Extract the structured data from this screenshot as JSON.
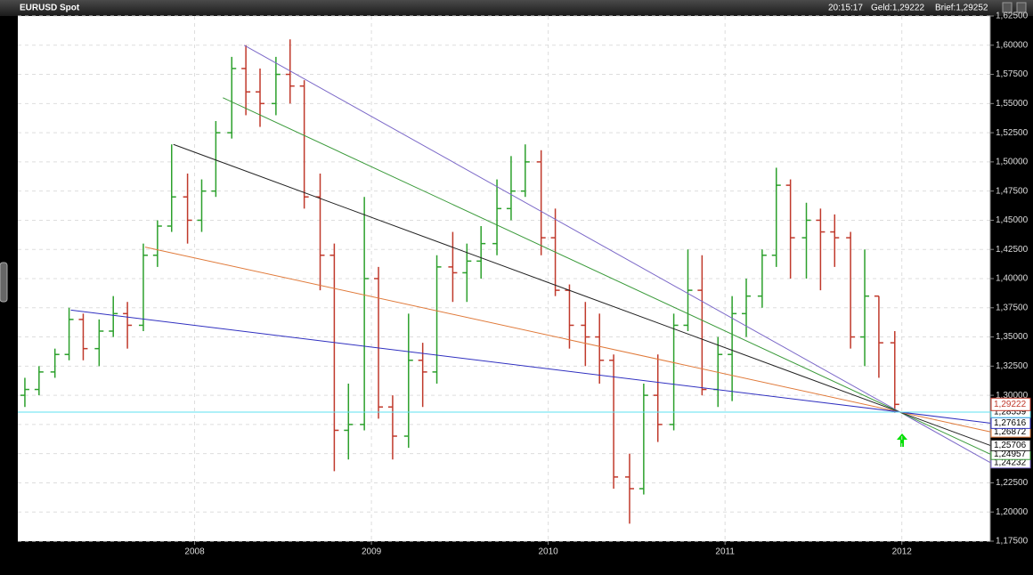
{
  "chart_data": {
    "type": "ohlc",
    "title": "EURUSD Spot",
    "time": "20:15:17",
    "bid": "Geld:1,29222",
    "ask": "Brief:1,29252",
    "up_color": "#2ca02c",
    "down_color": "#c0392b",
    "grid": true,
    "xlim": [
      2007.0,
      2012.5
    ],
    "xticks": [
      2008,
      2009,
      2010,
      2011,
      2012
    ],
    "ylim": [
      1.175,
      1.625
    ],
    "yticks": [
      {
        "value": 1.175,
        "label": "1,17500"
      },
      {
        "value": 1.2,
        "label": "1,20000"
      },
      {
        "value": 1.225,
        "label": "1,22500"
      },
      {
        "value": 1.25,
        "label": "1,25000"
      },
      {
        "value": 1.275,
        "label": "1,27500"
      },
      {
        "value": 1.3,
        "label": "1,30000"
      },
      {
        "value": 1.325,
        "label": "1,32500"
      },
      {
        "value": 1.35,
        "label": "1,35000"
      },
      {
        "value": 1.375,
        "label": "1,37500"
      },
      {
        "value": 1.4,
        "label": "1,40000"
      },
      {
        "value": 1.425,
        "label": "1,42500"
      },
      {
        "value": 1.45,
        "label": "1,45000"
      },
      {
        "value": 1.475,
        "label": "1,47500"
      },
      {
        "value": 1.5,
        "label": "1,50000"
      },
      {
        "value": 1.525,
        "label": "1,52500"
      },
      {
        "value": 1.55,
        "label": "1,55000"
      },
      {
        "value": 1.575,
        "label": "1,57500"
      },
      {
        "value": 1.6,
        "label": "1,60000"
      },
      {
        "value": 1.625,
        "label": "1,62500"
      }
    ],
    "x": [
      2007.04,
      2007.12,
      2007.21,
      2007.29,
      2007.37,
      2007.46,
      2007.54,
      2007.62,
      2007.71,
      2007.79,
      2007.87,
      2007.96,
      2008.04,
      2008.12,
      2008.21,
      2008.29,
      2008.37,
      2008.46,
      2008.54,
      2008.62,
      2008.71,
      2008.79,
      2008.87,
      2008.96,
      2009.04,
      2009.12,
      2009.21,
      2009.29,
      2009.37,
      2009.46,
      2009.54,
      2009.62,
      2009.71,
      2009.79,
      2009.87,
      2009.96,
      2010.04,
      2010.12,
      2010.21,
      2010.29,
      2010.37,
      2010.46,
      2010.54,
      2010.62,
      2010.71,
      2010.79,
      2010.87,
      2010.96,
      2011.04,
      2011.12,
      2011.21,
      2011.29,
      2011.37,
      2011.46,
      2011.54,
      2011.62,
      2011.71,
      2011.79,
      2011.87,
      2011.96
    ],
    "open": [
      1.3,
      1.305,
      1.32,
      1.335,
      1.365,
      1.34,
      1.355,
      1.37,
      1.36,
      1.42,
      1.445,
      1.47,
      1.45,
      1.475,
      1.525,
      1.58,
      1.56,
      1.55,
      1.575,
      1.565,
      1.47,
      1.42,
      1.27,
      1.275,
      1.4,
      1.29,
      1.265,
      1.33,
      1.32,
      1.41,
      1.405,
      1.415,
      1.43,
      1.46,
      1.475,
      1.5,
      1.435,
      1.39,
      1.36,
      1.35,
      1.33,
      1.23,
      1.22,
      1.3,
      1.275,
      1.36,
      1.39,
      1.305,
      1.335,
      1.37,
      1.385,
      1.42,
      1.48,
      1.435,
      1.45,
      1.44,
      1.435,
      1.35,
      1.385,
      1.345
    ],
    "high": [
      1.315,
      1.325,
      1.34,
      1.375,
      1.37,
      1.365,
      1.385,
      1.38,
      1.43,
      1.45,
      1.515,
      1.49,
      1.485,
      1.535,
      1.59,
      1.6,
      1.58,
      1.59,
      1.605,
      1.57,
      1.49,
      1.43,
      1.31,
      1.47,
      1.41,
      1.3,
      1.37,
      1.345,
      1.42,
      1.44,
      1.43,
      1.445,
      1.485,
      1.505,
      1.515,
      1.51,
      1.46,
      1.395,
      1.38,
      1.37,
      1.335,
      1.25,
      1.31,
      1.335,
      1.37,
      1.425,
      1.42,
      1.35,
      1.385,
      1.4,
      1.425,
      1.495,
      1.485,
      1.465,
      1.46,
      1.455,
      1.44,
      1.425,
      1.385,
      1.355
    ],
    "low": [
      1.29,
      1.3,
      1.315,
      1.33,
      1.33,
      1.325,
      1.35,
      1.34,
      1.355,
      1.41,
      1.44,
      1.43,
      1.44,
      1.47,
      1.52,
      1.54,
      1.53,
      1.54,
      1.55,
      1.46,
      1.39,
      1.235,
      1.245,
      1.27,
      1.28,
      1.245,
      1.255,
      1.29,
      1.31,
      1.38,
      1.38,
      1.4,
      1.42,
      1.45,
      1.47,
      1.42,
      1.385,
      1.34,
      1.325,
      1.31,
      1.22,
      1.19,
      1.215,
      1.26,
      1.27,
      1.355,
      1.3,
      1.29,
      1.295,
      1.35,
      1.375,
      1.41,
      1.4,
      1.4,
      1.39,
      1.41,
      1.34,
      1.325,
      1.315,
      1.285
    ],
    "close": [
      1.305,
      1.32,
      1.335,
      1.365,
      1.34,
      1.355,
      1.37,
      1.36,
      1.42,
      1.445,
      1.47,
      1.45,
      1.475,
      1.525,
      1.58,
      1.56,
      1.55,
      1.575,
      1.565,
      1.47,
      1.42,
      1.27,
      1.275,
      1.4,
      1.29,
      1.265,
      1.33,
      1.32,
      1.41,
      1.405,
      1.415,
      1.43,
      1.46,
      1.475,
      1.5,
      1.435,
      1.39,
      1.36,
      1.35,
      1.33,
      1.23,
      1.22,
      1.3,
      1.275,
      1.36,
      1.39,
      1.305,
      1.335,
      1.37,
      1.385,
      1.42,
      1.48,
      1.435,
      1.45,
      1.44,
      1.435,
      1.35,
      1.385,
      1.345,
      1.29222
    ],
    "last_price": {
      "value": 1.29222,
      "label": "1,29222"
    },
    "trendlines": [
      {
        "color": "#7b68c8",
        "x": [
          2008.28,
          2012.5
        ],
        "y": [
          1.6,
          1.24232
        ],
        "value_label": "1,24232"
      },
      {
        "color": "#3a9a3a",
        "x": [
          2008.16,
          2012.5
        ],
        "y": [
          1.555,
          1.24957
        ],
        "value_label": "1,24957"
      },
      {
        "color": "#222222",
        "x": [
          2007.88,
          2012.5
        ],
        "y": [
          1.515,
          1.25706
        ],
        "value_label": "1,25706"
      },
      {
        "color": "#e07a3a",
        "x": [
          2007.72,
          2012.5
        ],
        "y": [
          1.427,
          1.26872
        ],
        "value_label": "1,26872"
      },
      {
        "color": "#3030c0",
        "x": [
          2007.3,
          2012.5
        ],
        "y": [
          1.373,
          1.27616
        ],
        "value_label": "1,27616"
      },
      {
        "color": "#5fe0f0",
        "x": [
          2007.0,
          2012.5
        ],
        "y": [
          1.28559,
          1.28559
        ],
        "value_label": "1,28559"
      }
    ]
  }
}
